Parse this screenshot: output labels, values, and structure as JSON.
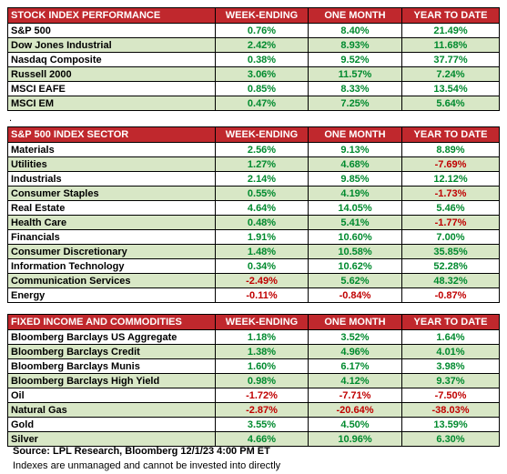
{
  "tables": [
    {
      "title": "STOCK INDEX PERFORMANCE",
      "columns": [
        "WEEK-ENDING",
        "ONE MONTH",
        "YEAR TO DATE"
      ],
      "rows": [
        {
          "label": "S&P 500",
          "values": [
            "0.76%",
            "8.40%",
            "21.49%"
          ]
        },
        {
          "label": "Dow Jones Industrial",
          "values": [
            "2.42%",
            "8.93%",
            "11.68%"
          ]
        },
        {
          "label": "Nasdaq Composite",
          "values": [
            "0.38%",
            "9.52%",
            "37.77%"
          ]
        },
        {
          "label": "Russell 2000",
          "values": [
            "3.06%",
            "11.57%",
            "7.24%"
          ]
        },
        {
          "label": "MSCI EAFE",
          "values": [
            "0.85%",
            "8.33%",
            "13.54%"
          ]
        },
        {
          "label": "MSCI EM",
          "values": [
            "0.47%",
            "7.25%",
            "5.64%"
          ]
        }
      ]
    },
    {
      "title": "S&P 500 INDEX SECTOR",
      "columns": [
        "WEEK-ENDING",
        "ONE MONTH",
        "YEAR TO DATE"
      ],
      "rows": [
        {
          "label": "Materials",
          "values": [
            "2.56%",
            "9.13%",
            "8.89%"
          ]
        },
        {
          "label": "Utilities",
          "values": [
            "1.27%",
            "4.68%",
            "-7.69%"
          ]
        },
        {
          "label": "Industrials",
          "values": [
            "2.14%",
            "9.85%",
            "12.12%"
          ]
        },
        {
          "label": "Consumer Staples",
          "values": [
            "0.55%",
            "4.19%",
            "-1.73%"
          ]
        },
        {
          "label": "Real Estate",
          "values": [
            "4.64%",
            "14.05%",
            "5.46%"
          ]
        },
        {
          "label": "Health Care",
          "values": [
            "0.48%",
            "5.41%",
            "-1.77%"
          ]
        },
        {
          "label": "Financials",
          "values": [
            "1.91%",
            "10.60%",
            "7.00%"
          ]
        },
        {
          "label": "Consumer Discretionary",
          "values": [
            "1.48%",
            "10.58%",
            "35.85%"
          ]
        },
        {
          "label": "Information Technology",
          "values": [
            "0.34%",
            "10.62%",
            "52.28%"
          ]
        },
        {
          "label": "Communication Services",
          "values": [
            "-2.49%",
            "5.62%",
            "48.32%"
          ]
        },
        {
          "label": "Energy",
          "values": [
            "-0.11%",
            "-0.84%",
            "-0.87%"
          ]
        }
      ]
    },
    {
      "title": "FIXED INCOME AND COMMODITIES",
      "columns": [
        "WEEK-ENDING",
        "ONE MONTH",
        "YEAR TO DATE"
      ],
      "rows": [
        {
          "label": "Bloomberg Barclays US Aggregate",
          "values": [
            "1.18%",
            "3.52%",
            "1.64%"
          ]
        },
        {
          "label": "Bloomberg Barclays Credit",
          "values": [
            "1.38%",
            "4.96%",
            "4.01%"
          ]
        },
        {
          "label": "Bloomberg Barclays Munis",
          "values": [
            "1.60%",
            "6.17%",
            "3.98%"
          ]
        },
        {
          "label": "Bloomberg Barclays High Yield",
          "values": [
            "0.98%",
            "4.12%",
            "9.37%"
          ]
        },
        {
          "label": "Oil",
          "values": [
            "-1.72%",
            "-7.71%",
            "-7.50%"
          ]
        },
        {
          "label": "Natural Gas",
          "values": [
            "-2.87%",
            "-20.64%",
            "-38.03%"
          ]
        },
        {
          "label": "Gold",
          "values": [
            "3.55%",
            "4.50%",
            "13.59%"
          ]
        },
        {
          "label": "Silver",
          "values": [
            "4.66%",
            "10.96%",
            "6.30%"
          ]
        }
      ]
    }
  ],
  "separator": ".",
  "source": "Source: LPL Research, Bloomberg 12/1/23 4:00 PM ET",
  "note": "Indexes are unmanaged and cannot be invested into directly"
}
